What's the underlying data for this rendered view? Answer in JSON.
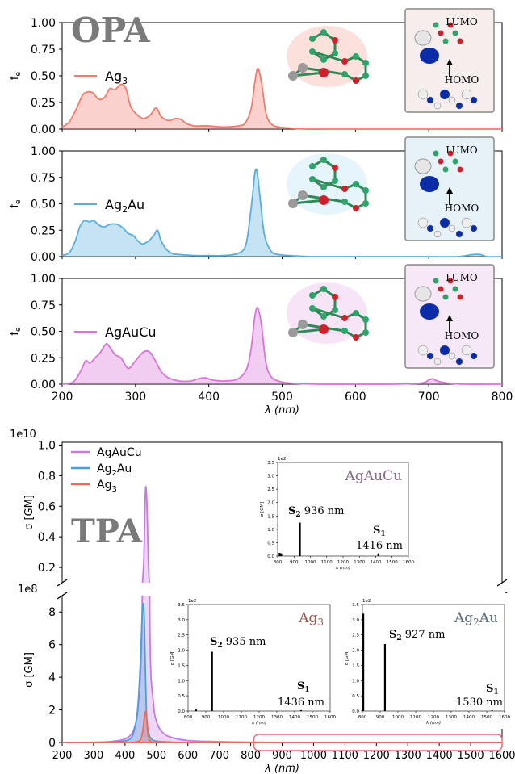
{
  "chart_data": [
    {
      "type": "area",
      "panel": "opa-ag3",
      "big_label": "OPA",
      "ylabel": "f",
      "ylabel_sub": "e",
      "ylim": [
        0,
        1.0
      ],
      "yticks": [
        "1.00",
        "0.75",
        "0.50",
        "0.25",
        "0.00"
      ],
      "ytick_values": [
        1.0,
        0.75,
        0.5,
        0.25,
        0.0
      ],
      "xlim": [
        200,
        800
      ],
      "color": "#f07c6c",
      "series": [
        {
          "name_main": "Ag",
          "name_sub": "3",
          "x": [
            200,
            210,
            220,
            228,
            235,
            242,
            250,
            258,
            265,
            272,
            280,
            287,
            293,
            300,
            310,
            320,
            328,
            335,
            345,
            355,
            362,
            370,
            380,
            390,
            400,
            420,
            440,
            450,
            458,
            463,
            467,
            472,
            478,
            485,
            495,
            510,
            530,
            560,
            600,
            650,
            700,
            750,
            800
          ],
          "y": [
            0.02,
            0.07,
            0.2,
            0.32,
            0.35,
            0.34,
            0.28,
            0.3,
            0.38,
            0.37,
            0.42,
            0.38,
            0.22,
            0.15,
            0.1,
            0.13,
            0.2,
            0.12,
            0.08,
            0.1,
            0.09,
            0.05,
            0.03,
            0.03,
            0.03,
            0.02,
            0.03,
            0.06,
            0.2,
            0.45,
            0.57,
            0.43,
            0.15,
            0.05,
            0.02,
            0.01,
            0.0,
            0.0,
            0.0,
            0.0,
            0.0,
            0.0,
            0.0
          ]
        }
      ],
      "orbitals": [
        "LUMO",
        "HOMO"
      ]
    },
    {
      "type": "area",
      "panel": "opa-ag2au",
      "ylabel": "f",
      "ylabel_sub": "e",
      "ylim": [
        0,
        1.0
      ],
      "yticks": [
        "1.00",
        "0.75",
        "0.50",
        "0.25",
        "0.00"
      ],
      "ytick_values": [
        1.0,
        0.75,
        0.5,
        0.25,
        0.0
      ],
      "xlim": [
        200,
        800
      ],
      "color": "#58aedd",
      "series": [
        {
          "name_main": "Ag",
          "name_sub": "2",
          "name_tail": "Au",
          "x": [
            200,
            210,
            218,
            224,
            230,
            237,
            243,
            250,
            257,
            263,
            270,
            277,
            283,
            290,
            297,
            303,
            310,
            318,
            325,
            330,
            335,
            342,
            350,
            360,
            380,
            400,
            420,
            440,
            450,
            455,
            460,
            463,
            466,
            470,
            476,
            485,
            495,
            510,
            540,
            600,
            700,
            740,
            760,
            770,
            780,
            800
          ],
          "y": [
            0.01,
            0.04,
            0.15,
            0.28,
            0.34,
            0.33,
            0.34,
            0.3,
            0.28,
            0.3,
            0.31,
            0.3,
            0.27,
            0.22,
            0.2,
            0.15,
            0.12,
            0.15,
            0.2,
            0.25,
            0.15,
            0.07,
            0.03,
            0.02,
            0.01,
            0.01,
            0.01,
            0.03,
            0.1,
            0.3,
            0.6,
            0.8,
            0.8,
            0.55,
            0.2,
            0.05,
            0.02,
            0.01,
            0.0,
            0.0,
            0.0,
            0.0,
            0.02,
            0.02,
            0.0,
            0.0
          ]
        }
      ],
      "orbitals": [
        "LUMO",
        "HOMO"
      ]
    },
    {
      "type": "area",
      "panel": "opa-agaucu",
      "ylabel": "f",
      "ylabel_sub": "e",
      "ylim": [
        0,
        1.0
      ],
      "yticks": [
        "1.00",
        "0.75",
        "0.50",
        "0.25",
        "0.00"
      ],
      "ytick_values": [
        1.0,
        0.75,
        0.5,
        0.25,
        0.0
      ],
      "xlim": [
        200,
        800
      ],
      "xticks": [
        200,
        300,
        400,
        500,
        600,
        700,
        800
      ],
      "xlabel": "λ (nm)",
      "color": "#d874d8",
      "series": [
        {
          "name_main": "AgAuCu",
          "x": [
            200,
            215,
            225,
            232,
            238,
            245,
            252,
            260,
            265,
            272,
            280,
            290,
            300,
            310,
            318,
            325,
            335,
            345,
            360,
            375,
            385,
            395,
            405,
            420,
            440,
            452,
            458,
            463,
            467,
            472,
            478,
            485,
            495,
            510,
            550,
            600,
            650,
            690,
            700,
            705,
            712,
            725,
            750,
            800
          ],
          "y": [
            0.0,
            0.02,
            0.12,
            0.22,
            0.2,
            0.25,
            0.3,
            0.38,
            0.35,
            0.28,
            0.25,
            0.15,
            0.22,
            0.3,
            0.31,
            0.25,
            0.12,
            0.06,
            0.03,
            0.03,
            0.05,
            0.06,
            0.04,
            0.03,
            0.05,
            0.15,
            0.35,
            0.65,
            0.72,
            0.55,
            0.2,
            0.07,
            0.03,
            0.01,
            0.0,
            0.0,
            0.0,
            0.01,
            0.04,
            0.05,
            0.03,
            0.01,
            0.0,
            0.0
          ]
        }
      ],
      "orbitals": [
        "LUMO",
        "HOMO"
      ]
    },
    {
      "type": "area",
      "panel": "tpa-main",
      "big_label": "TPA",
      "ylabel": "σ [GM]",
      "xlabel": "λ (nm)",
      "xlim": [
        200,
        1600
      ],
      "xticks": [
        200,
        300,
        400,
        500,
        600,
        700,
        800,
        900,
        1000,
        1100,
        1200,
        1300,
        1400,
        1500,
        1600
      ],
      "upper": {
        "exponent": "1e10",
        "range": [
          0.1,
          1.0
        ],
        "yticks": [
          "1.0",
          "0.8",
          "0.6",
          "0.4",
          "0.2"
        ],
        "ytick_values": [
          1.0,
          0.8,
          0.6,
          0.4,
          0.2
        ]
      },
      "lower": {
        "exponent": "1e8",
        "range": [
          0,
          9
        ],
        "yticks": [
          "8",
          "6",
          "4",
          "2",
          "0"
        ],
        "ytick_values": [
          8,
          6,
          4,
          2,
          0
        ]
      },
      "series": [
        {
          "name": "AgAuCu",
          "color": "#c77be0",
          "x": [
            200,
            300,
            350,
            380,
            400,
            420,
            430,
            440,
            450,
            455,
            460,
            463,
            465,
            467,
            470,
            475,
            480,
            490,
            500,
            520,
            550,
            600,
            700,
            800,
            1000,
            1200,
            1600
          ],
          "y": [
            0.0,
            0.01,
            0.05,
            0.12,
            0.22,
            0.5,
            0.9,
            1.8,
            4.5,
            9,
            25,
            55,
            70,
            72,
            60,
            20,
            6,
            2.5,
            1.3,
            0.6,
            0.3,
            0.12,
            0.05,
            0.02,
            0.0,
            0.0,
            0.0
          ]
        },
        {
          "name_main": "Ag",
          "name_sub": "2",
          "name_tail": "Au",
          "color": "#4a9fdd",
          "x": [
            200,
            350,
            400,
            420,
            430,
            440,
            448,
            453,
            456,
            458,
            460,
            462,
            465,
            468,
            472,
            478,
            485,
            500,
            550,
            600,
            800,
            1600
          ],
          "y": [
            0.0,
            0.02,
            0.1,
            0.3,
            0.8,
            2.0,
            4.5,
            7.0,
            8.3,
            8.5,
            8.2,
            7.0,
            4.2,
            2.0,
            0.9,
            0.4,
            0.2,
            0.08,
            0.02,
            0.0,
            0.0,
            0.0
          ]
        },
        {
          "name_main": "Ag",
          "name_sub": "3",
          "color": "#f06a55",
          "x": [
            200,
            400,
            440,
            452,
            458,
            462,
            465,
            467,
            469,
            472,
            476,
            482,
            490,
            520,
            1600
          ],
          "y": [
            0.0,
            0.0,
            0.05,
            0.3,
            0.9,
            1.6,
            1.9,
            1.8,
            1.4,
            0.7,
            0.25,
            0.08,
            0.02,
            0.0,
            0.0
          ]
        }
      ]
    },
    {
      "type": "bar",
      "panel": "inset-agaucu",
      "title": "AgAuCu",
      "exponent": "1e2",
      "ylabel": "σ [GM]",
      "xlabel": "λ (nm)",
      "ylim": [
        0,
        3.5
      ],
      "yticks": [
        "3.5",
        "3.0",
        "2.5",
        "2.0",
        "1.5",
        "1.0",
        "0.5",
        "0.0"
      ],
      "ytick_values": [
        3.5,
        3.0,
        2.5,
        2.0,
        1.5,
        1.0,
        0.5,
        0.0
      ],
      "xlim": [
        800,
        1600
      ],
      "xticks": [
        800,
        900,
        1000,
        1100,
        1200,
        1300,
        1400,
        1500,
        1600
      ],
      "bars": [
        {
          "x": 812,
          "y": 0.12
        },
        {
          "x": 822,
          "y": 0.1
        },
        {
          "x": 936,
          "y": 1.25
        },
        {
          "x": 1416,
          "y": 0.1
        }
      ],
      "annotations": [
        {
          "state": "S",
          "sub": "2",
          "text": " 936 nm"
        },
        {
          "state": "S",
          "sub": "1",
          "text": "1416 nm"
        }
      ]
    },
    {
      "type": "bar",
      "panel": "inset-ag3",
      "title_main": "Ag",
      "title_sub": "3",
      "exponent": "1e2",
      "ylabel": "σ [GM]",
      "xlabel": "λ (nm)",
      "ylim": [
        0,
        3.5
      ],
      "yticks": [
        "3.5",
        "3.0",
        "2.5",
        "2.0",
        "1.5",
        "1.0",
        "0.5",
        "0.0"
      ],
      "ytick_values": [
        3.5,
        3.0,
        2.5,
        2.0,
        1.5,
        1.0,
        0.5,
        0.0
      ],
      "xlim": [
        800,
        1600
      ],
      "xticks": [
        800,
        900,
        1000,
        1100,
        1200,
        1300,
        1400,
        1500,
        1600
      ],
      "bars": [
        {
          "x": 845,
          "y": 0.05
        },
        {
          "x": 935,
          "y": 1.95
        },
        {
          "x": 1436,
          "y": 0.03
        }
      ],
      "annotations": [
        {
          "state": "S",
          "sub": "2",
          "text": " 935 nm"
        },
        {
          "state": "S",
          "sub": "1",
          "text": "1436 nm"
        }
      ]
    },
    {
      "type": "bar",
      "panel": "inset-ag2au",
      "title_main": "Ag",
      "title_sub": "2",
      "title_tail": "Au",
      "exponent": "1e2",
      "ylabel": "σ [GM]",
      "xlabel": "λ (nm)",
      "ylim": [
        0,
        3.5
      ],
      "yticks": [
        "3.5",
        "3.0",
        "2.5",
        "2.0",
        "1.5",
        "1.0",
        "0.5",
        "0.0"
      ],
      "ytick_values": [
        3.5,
        3.0,
        2.5,
        2.0,
        1.5,
        1.0,
        0.5,
        0.0
      ],
      "xlim": [
        800,
        1600
      ],
      "xticks": [
        800,
        900,
        1000,
        1100,
        1200,
        1300,
        1400,
        1500,
        1600
      ],
      "bars": [
        {
          "x": 805,
          "y": 3.2
        },
        {
          "x": 927,
          "y": 2.2
        },
        {
          "x": 1530,
          "y": 0.02
        }
      ],
      "annotations": [
        {
          "state": "S",
          "sub": "2",
          "text": " 927 nm"
        },
        {
          "state": "S",
          "sub": "1",
          "text": "1530 nm"
        }
      ]
    }
  ]
}
